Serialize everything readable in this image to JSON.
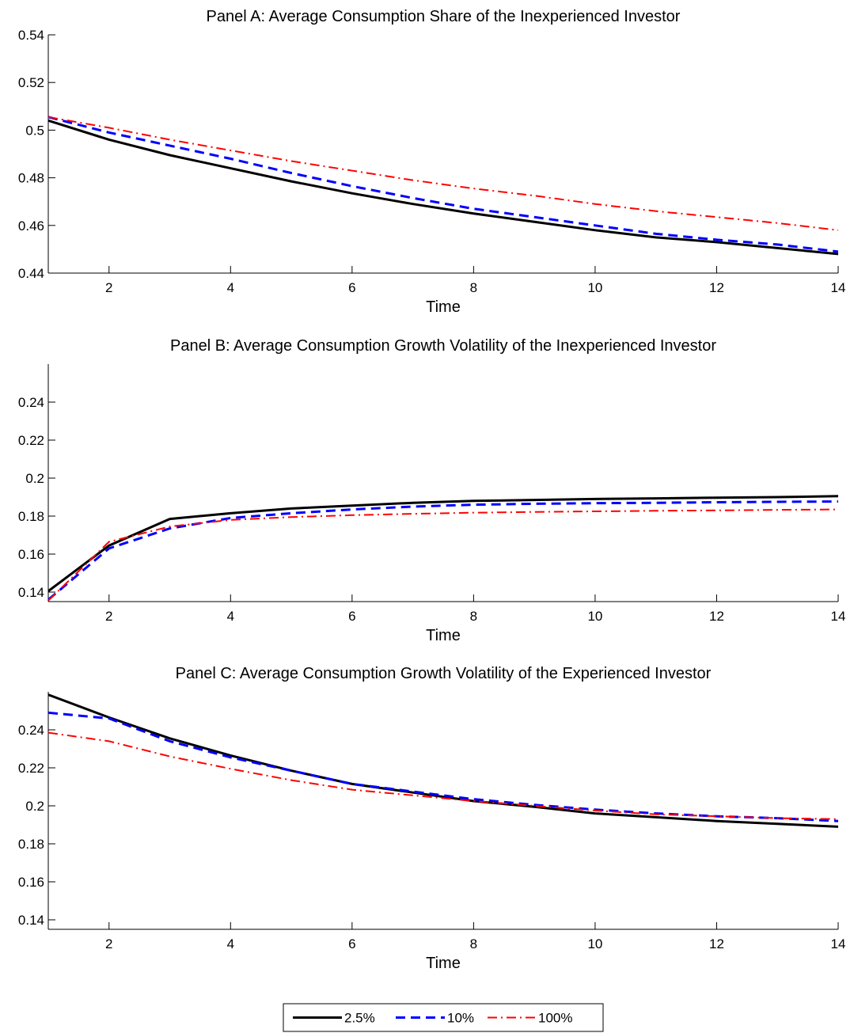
{
  "chart_data": [
    {
      "type": "line",
      "title": "Panel A: Average Consumption Share of the Inexperienced Investor",
      "xlabel": "Time",
      "ylabel": "",
      "xlim": [
        1,
        14
      ],
      "ylim": [
        0.44,
        0.54
      ],
      "xticks": [
        2,
        4,
        6,
        8,
        10,
        12,
        14
      ],
      "yticks": [
        0.44,
        0.46,
        0.48,
        0.5,
        0.52,
        0.54
      ],
      "ytick_labels": [
        "0.44",
        "0.46",
        "0.48",
        "0.5",
        "0.52",
        "0.54"
      ],
      "x": [
        1,
        2,
        3,
        4,
        5,
        6,
        7,
        8,
        9,
        10,
        11,
        12,
        13,
        14
      ],
      "series": [
        {
          "name": "2.5%",
          "values": [
            0.504,
            0.496,
            0.4895,
            0.484,
            0.4785,
            0.4735,
            0.469,
            0.465,
            0.4615,
            0.458,
            0.455,
            0.453,
            0.4505,
            0.448
          ]
        },
        {
          "name": "10%",
          "values": [
            0.5055,
            0.499,
            0.4935,
            0.488,
            0.482,
            0.4765,
            0.4715,
            0.467,
            0.4635,
            0.46,
            0.4565,
            0.454,
            0.452,
            0.449
          ]
        },
        {
          "name": "100%",
          "values": [
            0.5055,
            0.501,
            0.496,
            0.4915,
            0.487,
            0.483,
            0.479,
            0.4755,
            0.4725,
            0.469,
            0.466,
            0.4635,
            0.461,
            0.458
          ]
        }
      ]
    },
    {
      "type": "line",
      "title": "Panel B: Average Consumption Growth Volatility of the Inexperienced Investor",
      "xlabel": "Time",
      "ylabel": "",
      "xlim": [
        1,
        14
      ],
      "ylim": [
        0.135,
        0.26
      ],
      "xticks": [
        2,
        4,
        6,
        8,
        10,
        12,
        14
      ],
      "yticks": [
        0.14,
        0.16,
        0.18,
        0.2,
        0.22,
        0.24
      ],
      "ytick_labels": [
        "0.14",
        "0.16",
        "0.18",
        "0.2",
        "0.22",
        "0.24"
      ],
      "x": [
        1,
        2,
        3,
        4,
        5,
        6,
        7,
        8,
        9,
        10,
        11,
        12,
        13,
        14
      ],
      "series": [
        {
          "name": "2.5%",
          "values": [
            0.1405,
            0.1645,
            0.1785,
            0.1815,
            0.184,
            0.1855,
            0.187,
            0.188,
            0.1885,
            0.189,
            0.1893,
            0.1897,
            0.19,
            0.1905
          ]
        },
        {
          "name": "10%",
          "values": [
            0.136,
            0.163,
            0.1735,
            0.179,
            0.1815,
            0.1835,
            0.185,
            0.186,
            0.1865,
            0.1868,
            0.187,
            0.1873,
            0.1875,
            0.1877
          ]
        },
        {
          "name": "100%",
          "values": [
            0.1355,
            0.1665,
            0.1745,
            0.178,
            0.1795,
            0.1805,
            0.1812,
            0.1818,
            0.1822,
            0.1825,
            0.1828,
            0.183,
            0.1833,
            0.1835
          ]
        }
      ]
    },
    {
      "type": "line",
      "title": "Panel C: Average Consumption Growth Volatility of the Experienced Investor",
      "xlabel": "Time",
      "ylabel": "",
      "xlim": [
        1,
        14
      ],
      "ylim": [
        0.135,
        0.26
      ],
      "xticks": [
        2,
        4,
        6,
        8,
        10,
        12,
        14
      ],
      "yticks": [
        0.14,
        0.16,
        0.18,
        0.2,
        0.22,
        0.24
      ],
      "ytick_labels": [
        "0.14",
        "0.16",
        "0.18",
        "0.2",
        "0.22",
        "0.24"
      ],
      "x": [
        1,
        2,
        3,
        4,
        5,
        6,
        7,
        8,
        9,
        10,
        11,
        12,
        13,
        14
      ],
      "series": [
        {
          "name": "2.5%",
          "values": [
            0.2585,
            0.2465,
            0.2355,
            0.2265,
            0.2185,
            0.2115,
            0.207,
            0.2025,
            0.1995,
            0.196,
            0.194,
            0.192,
            0.1905,
            0.189
          ]
        },
        {
          "name": "10%",
          "values": [
            0.249,
            0.246,
            0.234,
            0.2255,
            0.2185,
            0.2115,
            0.2075,
            0.2035,
            0.2005,
            0.198,
            0.196,
            0.1945,
            0.1935,
            0.192
          ]
        },
        {
          "name": "100%",
          "values": [
            0.2385,
            0.234,
            0.226,
            0.2195,
            0.2135,
            0.2085,
            0.2055,
            0.2025,
            0.2,
            0.1975,
            0.1955,
            0.1945,
            0.1935,
            0.193
          ]
        }
      ]
    }
  ],
  "legend": {
    "placement": "bottom-center",
    "entries": [
      {
        "label": "2.5%",
        "color": "#000000",
        "style": "solid"
      },
      {
        "label": "10%",
        "color": "#0000ff",
        "style": "dashed"
      },
      {
        "label": "100%",
        "color": "#ff0000",
        "style": "dashdot"
      }
    ]
  }
}
